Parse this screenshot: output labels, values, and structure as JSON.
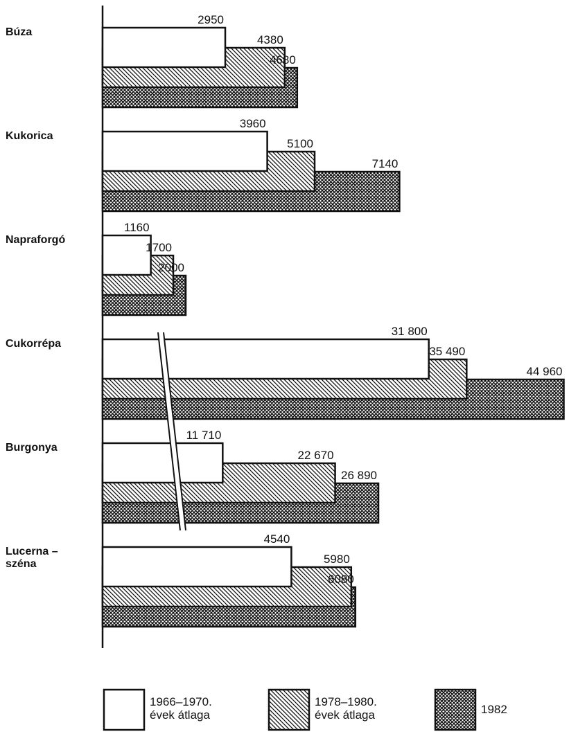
{
  "chart_data": {
    "type": "bar",
    "orientation": "horizontal",
    "categories": [
      "Búza",
      "Kukorica",
      "Napraforgó",
      "Cukorrépa",
      "Burgonya",
      "Lucerna –\nszéna"
    ],
    "series": [
      {
        "name": "1966–1970.\névek átlaga",
        "color": "#ffffff",
        "pattern": "none",
        "values": [
          2950,
          3960,
          1160,
          31800,
          11710,
          4540
        ],
        "value_labels": [
          "2950",
          "3960",
          "1160",
          "31 800",
          "11 710",
          "4540"
        ]
      },
      {
        "name": "1978–1980.\névek átlaga",
        "color": "#ffffff",
        "pattern": "hatch",
        "values": [
          4380,
          5100,
          1700,
          35490,
          22670,
          5980
        ],
        "value_labels": [
          "4380",
          "5100",
          "1700",
          "35 490",
          "22 670",
          "5980"
        ]
      },
      {
        "name": "1982",
        "color": "#ffffff",
        "pattern": "crosshatch",
        "values": [
          4680,
          7140,
          2000,
          44960,
          26890,
          6080
        ],
        "value_labels": [
          "4680",
          "7140",
          "2000",
          "44 960",
          "26 890",
          "6080"
        ]
      }
    ],
    "xlim": [
      0,
      11200
    ],
    "x2lim": [
      0,
      45400
    ],
    "axis_break": [
      3,
      4
    ]
  }
}
